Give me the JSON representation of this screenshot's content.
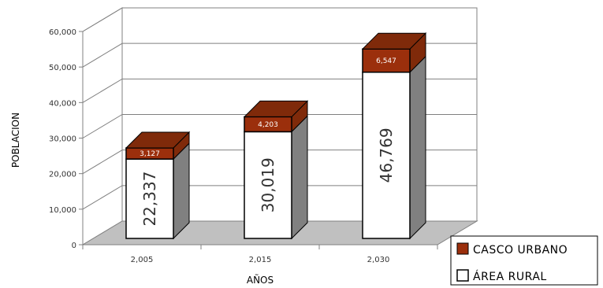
{
  "chart_data": {
    "type": "bar",
    "stacked": true,
    "three_d": true,
    "categories": [
      "2,005",
      "2,015",
      "2,030"
    ],
    "series": [
      {
        "name": "ÁREA RURAL",
        "values": [
          22337,
          30019,
          46769
        ],
        "labels": [
          "22,337",
          "30,019",
          "46,769"
        ],
        "color": "#ffffff"
      },
      {
        "name": "CASCO URBANO",
        "values": [
          3127,
          4203,
          6547
        ],
        "labels": [
          "3,127",
          "4,203",
          "6,547"
        ],
        "color": "#9b2f0c"
      }
    ],
    "xlabel": "AÑOS",
    "ylabel": "POBLACION",
    "ylim": [
      0,
      60000
    ],
    "yticks": [
      "0",
      "10,000",
      "20,000",
      "30,000",
      "40,000",
      "50,000",
      "60,000"
    ],
    "grid": true,
    "legend_position": "bottom-right",
    "colors": {
      "urbano": "#9b2f0c",
      "urbano_top": "#7f2a0a",
      "rural": "#ffffff",
      "side": "#808080",
      "floor": "#c0c0c0"
    }
  }
}
